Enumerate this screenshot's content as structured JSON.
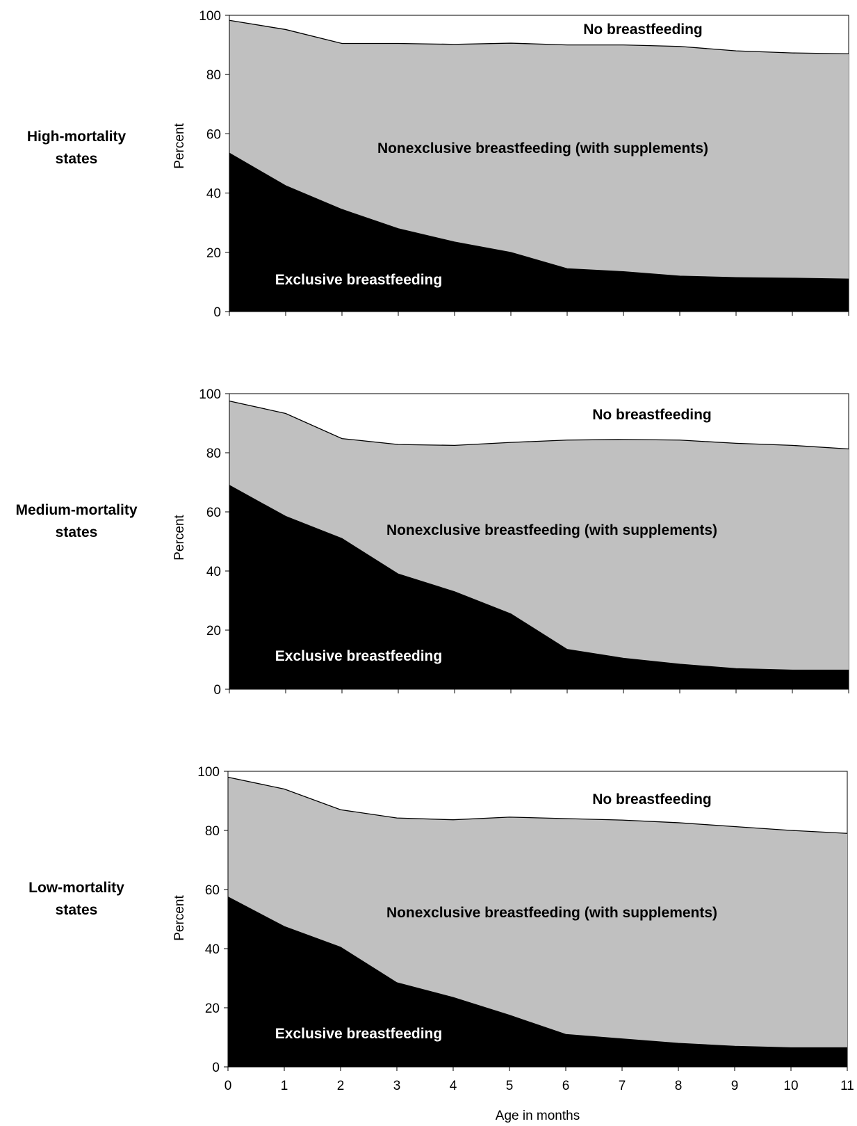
{
  "chart_data": [
    {
      "type": "area",
      "row_label": [
        "High-mortality",
        "states"
      ],
      "ylabel": "Percent",
      "ylim": [
        0,
        100
      ],
      "yticks": [
        0,
        20,
        40,
        60,
        80,
        100
      ],
      "x": [
        0,
        1,
        2,
        3,
        4,
        5,
        6,
        7,
        8,
        9,
        10,
        11
      ],
      "series": [
        {
          "name": "Exclusive breastfeeding",
          "color": "#000000",
          "cumulative": [
            53.5,
            42.5,
            34.5,
            28,
            23.5,
            20,
            14.5,
            13.5,
            12,
            11.5,
            11.3,
            11
          ]
        },
        {
          "name": "Nonexclusive breastfeeding (with supplements)",
          "color": "#c0c0c0",
          "cumulative": [
            98.3,
            95.2,
            90.5,
            90.5,
            90.2,
            90.6,
            90,
            90,
            89.5,
            88,
            87.3,
            87
          ]
        },
        {
          "name": "No breastfeeding",
          "color": "#ffffff",
          "cumulative": [
            100,
            100,
            100,
            100,
            100,
            100,
            100,
            100,
            100,
            100,
            100,
            100
          ]
        }
      ]
    },
    {
      "type": "area",
      "row_label": [
        "Medium-mortality",
        "states"
      ],
      "ylabel": "Percent",
      "ylim": [
        0,
        100
      ],
      "yticks": [
        0,
        20,
        40,
        60,
        80,
        100
      ],
      "x": [
        0,
        1,
        2,
        3,
        4,
        5,
        6,
        7,
        8,
        9,
        10,
        11
      ],
      "series": [
        {
          "name": "Exclusive breastfeeding",
          "color": "#000000",
          "cumulative": [
            69,
            58.5,
            51,
            39,
            33,
            25.5,
            13.5,
            10.5,
            8.5,
            7,
            6.5,
            6.5
          ]
        },
        {
          "name": "Nonexclusive breastfeeding (with supplements)",
          "color": "#c0c0c0",
          "cumulative": [
            97.5,
            93.3,
            84.8,
            82.8,
            82.5,
            83.5,
            84.3,
            84.5,
            84.3,
            83.2,
            82.5,
            81.3
          ]
        },
        {
          "name": "No breastfeeding",
          "color": "#ffffff",
          "cumulative": [
            100,
            100,
            100,
            100,
            100,
            100,
            100,
            100,
            100,
            100,
            100,
            100
          ]
        }
      ]
    },
    {
      "type": "area",
      "row_label": [
        "Low-mortality",
        "states"
      ],
      "ylabel": "Percent",
      "ylim": [
        0,
        100
      ],
      "yticks": [
        0,
        20,
        40,
        60,
        80,
        100
      ],
      "x": [
        0,
        1,
        2,
        3,
        4,
        5,
        6,
        7,
        8,
        9,
        10,
        11
      ],
      "xticks": [
        "0",
        "1",
        "2",
        "3",
        "4",
        "5",
        "6",
        "7",
        "8",
        "9",
        "10",
        "11"
      ],
      "xlabel": "Age in months",
      "series": [
        {
          "name": "Exclusive breastfeeding",
          "color": "#000000",
          "cumulative": [
            57.5,
            47.5,
            40.5,
            28.5,
            23.5,
            17.5,
            11,
            9.5,
            8,
            7,
            6.5,
            6.5
          ]
        },
        {
          "name": "Nonexclusive breastfeeding (with supplements)",
          "color": "#c0c0c0",
          "cumulative": [
            98,
            94,
            87,
            84.2,
            83.6,
            84.5,
            84,
            83.5,
            82.6,
            81.3,
            80,
            79
          ]
        },
        {
          "name": "No breastfeeding",
          "color": "#ffffff",
          "cumulative": [
            100,
            100,
            100,
            100,
            100,
            100,
            100,
            100,
            100,
            100,
            100,
            100
          ]
        }
      ]
    }
  ]
}
